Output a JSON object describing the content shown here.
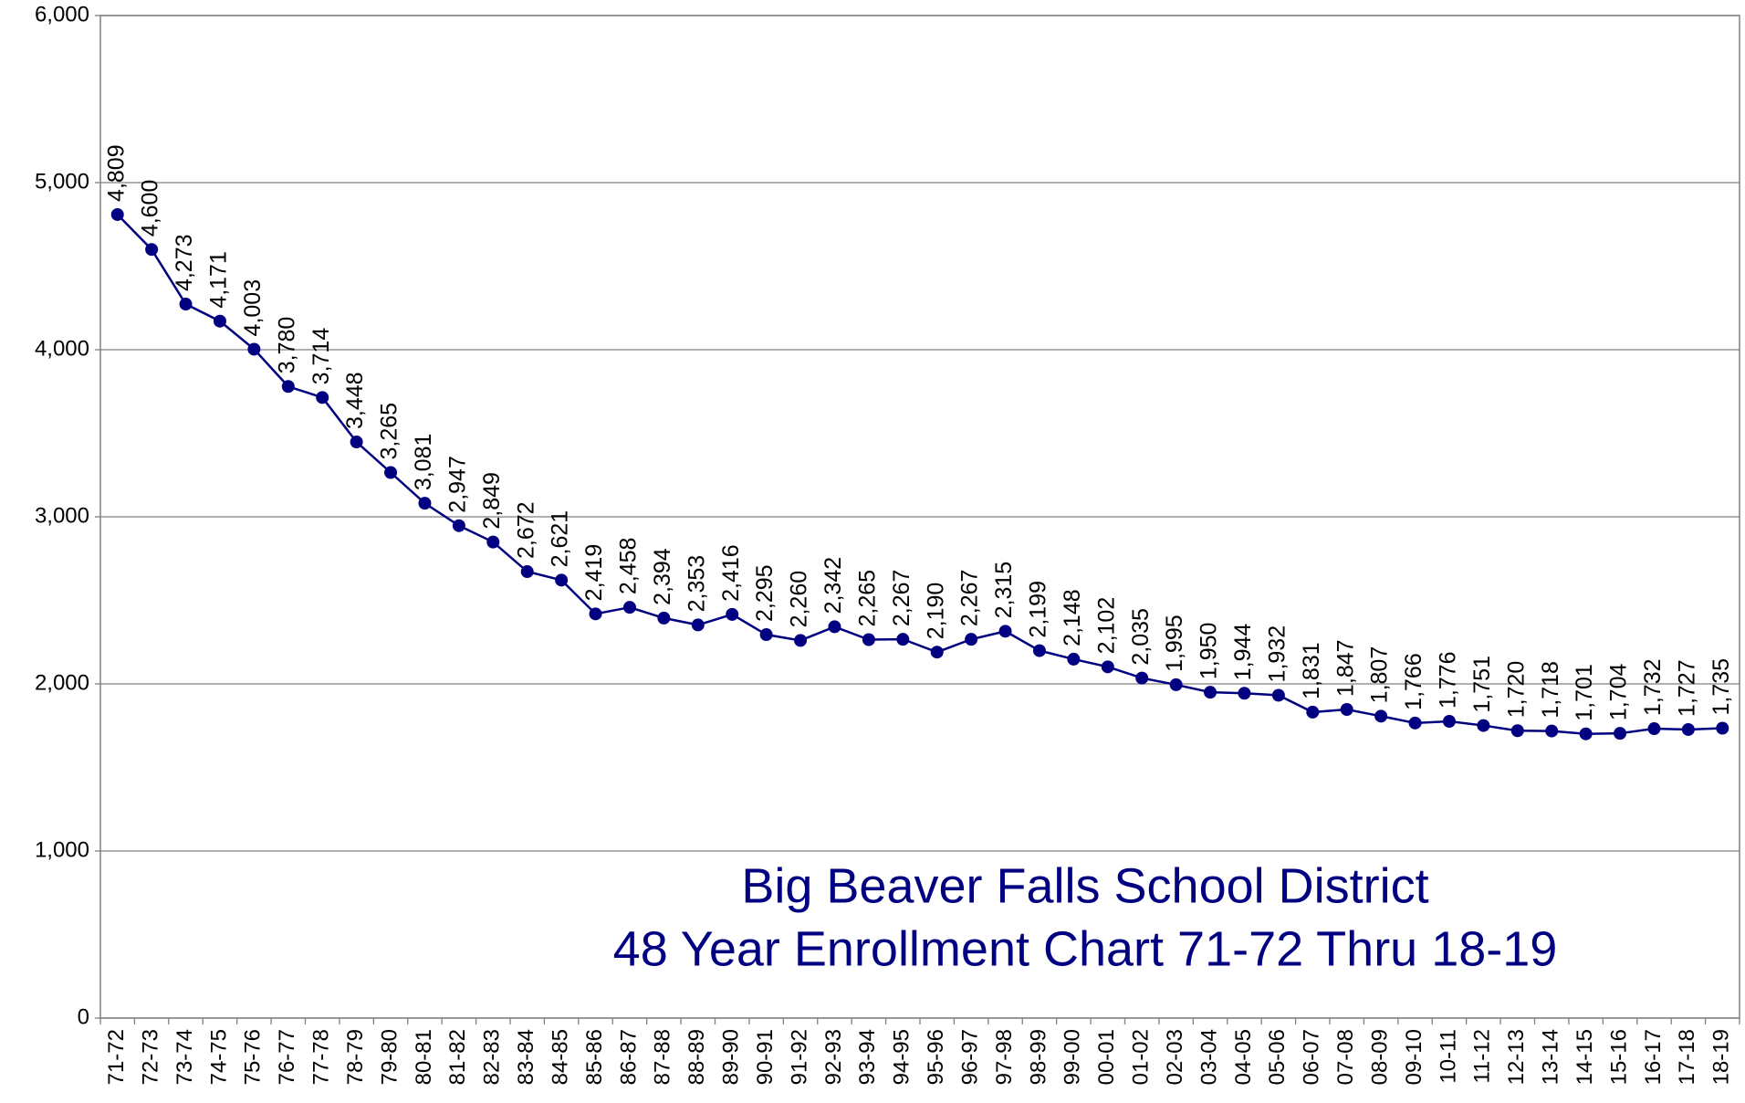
{
  "chart_data": {
    "type": "line",
    "title": "Big Beaver Falls School District",
    "subtitle": "48 Year Enrollment Chart 71-72 Thru 18-19",
    "categories": [
      "71-72",
      "72-73",
      "73-74",
      "74-75",
      "75-76",
      "76-77",
      "77-78",
      "78-79",
      "79-80",
      "80-81",
      "81-82",
      "82-83",
      "83-84",
      "84-85",
      "85-86",
      "86-87",
      "87-88",
      "88-89",
      "89-90",
      "90-91",
      "91-92",
      "92-93",
      "93-94",
      "94-95",
      "95-96",
      "96-97",
      "97-98",
      "98-99",
      "99-00",
      "00-01",
      "01-02",
      "02-03",
      "03-04",
      "04-05",
      "05-06",
      "06-07",
      "07-08",
      "08-09",
      "09-10",
      "10-11",
      "11-12",
      "12-13",
      "13-14",
      "14-15",
      "15-16",
      "16-17",
      "17-18",
      "18-19"
    ],
    "series": [
      {
        "name": "Enrollment",
        "color": "#000080",
        "values": [
          4809,
          4600,
          4273,
          4171,
          4003,
          3780,
          3714,
          3448,
          3265,
          3081,
          2947,
          2849,
          2672,
          2621,
          2419,
          2458,
          2394,
          2353,
          2416,
          2295,
          2260,
          2342,
          2265,
          2267,
          2190,
          2267,
          2315,
          2199,
          2148,
          2102,
          2035,
          1995,
          1950,
          1944,
          1932,
          1831,
          1847,
          1807,
          1766,
          1776,
          1751,
          1720,
          1718,
          1701,
          1704,
          1732,
          1727,
          1735
        ],
        "value_labels": [
          "4,809",
          "4,600",
          "4,273",
          "4,171",
          "4,003",
          "3,780",
          "3,714",
          "3,448",
          "3,265",
          "3,081",
          "2,947",
          "2,849",
          "2,672",
          "2,621",
          "2,419",
          "2,458",
          "2,394",
          "2,353",
          "2,416",
          "2,295",
          "2,260",
          "2,342",
          "2,265",
          "2,267",
          "2,190",
          "2,267",
          "2,315",
          "2,199",
          "2,148",
          "2,102",
          "2,035",
          "1,995",
          "1,950",
          "1,944",
          "1,932",
          "1,831",
          "1,847",
          "1,807",
          "1,766",
          "1,776",
          "1,751",
          "1,720",
          "1,718",
          "1,701",
          "1,704",
          "1,732",
          "1,727",
          "1,735"
        ]
      }
    ],
    "ylim": [
      0,
      6000
    ],
    "yticks": [
      0,
      {
        "value": 1000,
        "label": "1,000"
      },
      {
        "value": 2000,
        "label": "2,000"
      },
      {
        "value": 3000,
        "label": "3,000"
      },
      {
        "value": 4000,
        "label": "4,000"
      },
      {
        "value": 5000,
        "label": "5,000"
      },
      {
        "value": 6000,
        "label": "6,000"
      }
    ],
    "grid": true
  }
}
